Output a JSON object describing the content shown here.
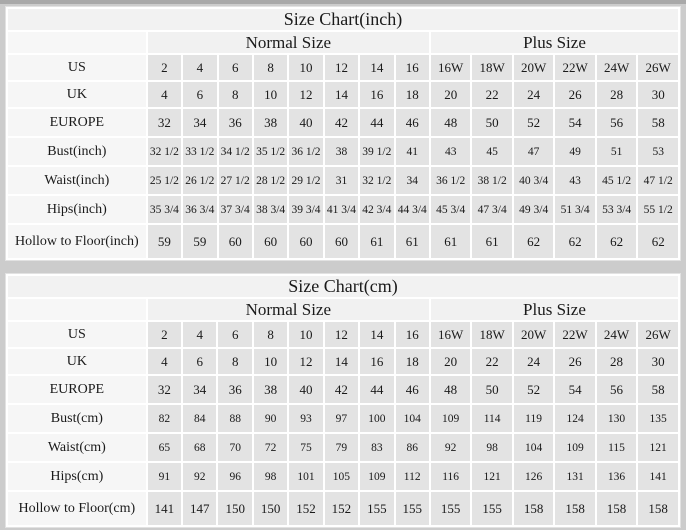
{
  "page": {
    "background_color": "#cccccc",
    "cell_color": "#e3e3e3",
    "label_cell_color": "#f6f6f6",
    "header_cell_color": "#f2f2f2",
    "text_color": "#1a1a1a"
  },
  "chart_data": [
    {
      "type": "table",
      "title": "Size Chart(inch)",
      "sections": {
        "normal": "Normal Size",
        "plus": "Plus Size"
      },
      "rows": [
        {
          "label": "US",
          "normal": [
            "2",
            "4",
            "6",
            "8",
            "10",
            "12",
            "14",
            "16"
          ],
          "plus": [
            "16W",
            "18W",
            "20W",
            "22W",
            "24W",
            "26W"
          ]
        },
        {
          "label": "UK",
          "normal": [
            "4",
            "6",
            "8",
            "10",
            "12",
            "14",
            "16",
            "18"
          ],
          "plus": [
            "20",
            "22",
            "24",
            "26",
            "28",
            "30"
          ]
        },
        {
          "label": "EUROPE",
          "normal": [
            "32",
            "34",
            "36",
            "38",
            "40",
            "42",
            "44",
            "46"
          ],
          "plus": [
            "48",
            "50",
            "52",
            "54",
            "56",
            "58"
          ]
        },
        {
          "label": "Bust(inch)",
          "normal": [
            "32 1/2",
            "33 1/2",
            "34 1/2",
            "35 1/2",
            "36 1/2",
            "38",
            "39 1/2",
            "41"
          ],
          "plus": [
            "43",
            "45",
            "47",
            "49",
            "51",
            "53"
          ]
        },
        {
          "label": "Waist(inch)",
          "normal": [
            "25 1/2",
            "26 1/2",
            "27 1/2",
            "28 1/2",
            "29 1/2",
            "31",
            "32 1/2",
            "34"
          ],
          "plus": [
            "36 1/2",
            "38 1/2",
            "40 3/4",
            "43",
            "45 1/2",
            "47 1/2"
          ]
        },
        {
          "label": "Hips(inch)",
          "normal": [
            "35 3/4",
            "36 3/4",
            "37 3/4",
            "38 3/4",
            "39 3/4",
            "41 3/4",
            "42 3/4",
            "44 3/4"
          ],
          "plus": [
            "45 3/4",
            "47 3/4",
            "49 3/4",
            "51 3/4",
            "53 3/4",
            "55 1/2"
          ]
        },
        {
          "label": "Hollow to Floor(inch)",
          "normal": [
            "59",
            "59",
            "60",
            "60",
            "60",
            "60",
            "61",
            "61"
          ],
          "plus": [
            "61",
            "61",
            "62",
            "62",
            "62",
            "62"
          ]
        }
      ]
    },
    {
      "type": "table",
      "title": "Size Chart(cm)",
      "sections": {
        "normal": "Normal Size",
        "plus": "Plus Size"
      },
      "rows": [
        {
          "label": "US",
          "normal": [
            "2",
            "4",
            "6",
            "8",
            "10",
            "12",
            "14",
            "16"
          ],
          "plus": [
            "16W",
            "18W",
            "20W",
            "22W",
            "24W",
            "26W"
          ]
        },
        {
          "label": "UK",
          "normal": [
            "4",
            "6",
            "8",
            "10",
            "12",
            "14",
            "16",
            "18"
          ],
          "plus": [
            "20",
            "22",
            "24",
            "26",
            "28",
            "30"
          ]
        },
        {
          "label": "EUROPE",
          "normal": [
            "32",
            "34",
            "36",
            "38",
            "40",
            "42",
            "44",
            "46"
          ],
          "plus": [
            "48",
            "50",
            "52",
            "54",
            "56",
            "58"
          ]
        },
        {
          "label": "Bust(cm)",
          "normal": [
            "82",
            "84",
            "88",
            "90",
            "93",
            "97",
            "100",
            "104"
          ],
          "plus": [
            "109",
            "114",
            "119",
            "124",
            "130",
            "135"
          ]
        },
        {
          "label": "Waist(cm)",
          "normal": [
            "65",
            "68",
            "70",
            "72",
            "75",
            "79",
            "83",
            "86"
          ],
          "plus": [
            "92",
            "98",
            "104",
            "109",
            "115",
            "121"
          ]
        },
        {
          "label": "Hips(cm)",
          "normal": [
            "91",
            "92",
            "96",
            "98",
            "101",
            "105",
            "109",
            "112"
          ],
          "plus": [
            "116",
            "121",
            "126",
            "131",
            "136",
            "141"
          ]
        },
        {
          "label": "Hollow to Floor(cm)",
          "normal": [
            "141",
            "147",
            "150",
            "150",
            "152",
            "152",
            "155",
            "155"
          ],
          "plus": [
            "155",
            "155",
            "158",
            "158",
            "158",
            "158"
          ]
        }
      ]
    }
  ]
}
